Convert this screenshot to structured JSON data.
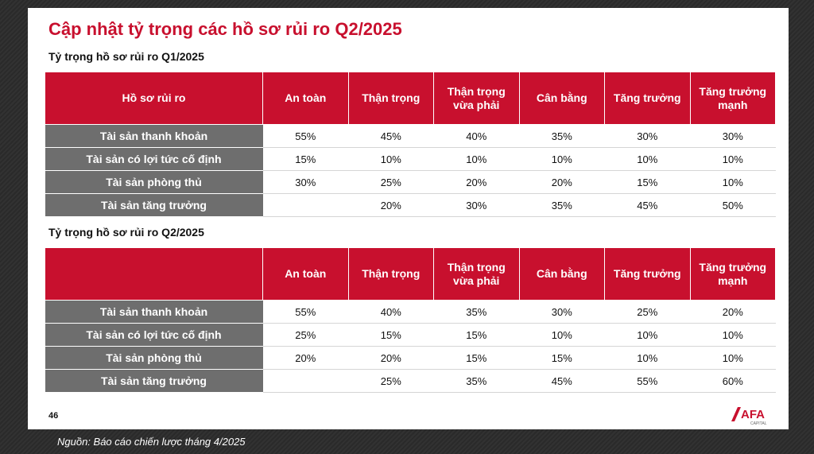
{
  "slide": {
    "title": "Cập nhật tỷ trọng các hồ sơ rủi ro Q2/2025",
    "page_number": "46",
    "logo_text": "AFA",
    "logo_sub": "CAPITAL"
  },
  "table_q1": {
    "caption": "Tỷ trọng hồ sơ rủi ro Q1/2025",
    "headers": [
      "Hồ sơ rủi ro",
      "An toàn",
      "Thận trọng",
      "Thận trọng vừa phải",
      "Cân bằng",
      "Tăng trưởng",
      "Tăng trưởng mạnh"
    ],
    "rows": [
      {
        "label": "Tài sản thanh khoản",
        "values": [
          "55%",
          "45%",
          "40%",
          "35%",
          "30%",
          "30%"
        ]
      },
      {
        "label": "Tài sản có lợi tức cố định",
        "values": [
          "15%",
          "10%",
          "10%",
          "10%",
          "10%",
          "10%"
        ]
      },
      {
        "label": "Tài sản phòng thủ",
        "values": [
          "30%",
          "25%",
          "20%",
          "20%",
          "15%",
          "10%"
        ]
      },
      {
        "label": "Tài sản tăng trưởng",
        "values": [
          "",
          "20%",
          "30%",
          "35%",
          "45%",
          "50%"
        ]
      }
    ]
  },
  "table_q2": {
    "caption": "Tỷ trọng hồ sơ rủi ro Q2/2025",
    "headers": [
      "",
      "An toàn",
      "Thận trọng",
      "Thận trọng vừa phải",
      "Cân bằng",
      "Tăng trưởng",
      "Tăng trưởng mạnh"
    ],
    "rows": [
      {
        "label": "Tài sản thanh khoản",
        "values": [
          "55%",
          "40%",
          "35%",
          "30%",
          "25%",
          "20%"
        ]
      },
      {
        "label": "Tài sản có lợi tức cố định",
        "values": [
          "25%",
          "15%",
          "15%",
          "10%",
          "10%",
          "10%"
        ]
      },
      {
        "label": "Tài sản phòng thủ",
        "values": [
          "20%",
          "20%",
          "15%",
          "15%",
          "10%",
          "10%"
        ]
      },
      {
        "label": "Tài sản tăng trưởng",
        "values": [
          "",
          "25%",
          "35%",
          "45%",
          "55%",
          "60%"
        ]
      }
    ]
  },
  "footer": {
    "source": "Nguồn: Báo cáo chiến lược tháng 4/2025"
  },
  "colors": {
    "header_red": "#c8102e",
    "row_label_gray": "#6e6e6e"
  }
}
